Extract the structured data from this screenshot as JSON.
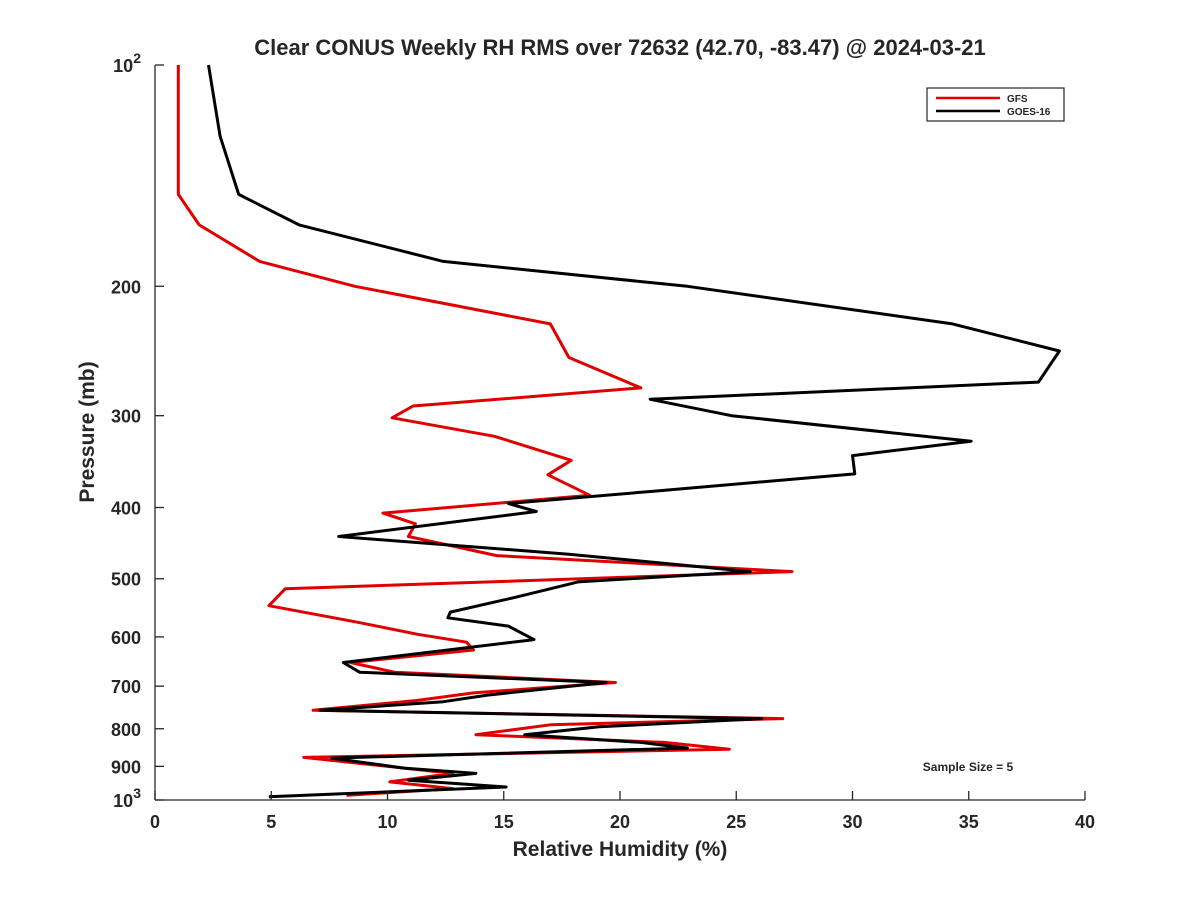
{
  "chart_data": {
    "type": "line",
    "title": "Clear CONUS Weekly RH RMS over 72632 (42.70, -83.47) @ 2024-03-21",
    "xlabel": "Relative Humidity (%)",
    "ylabel": "Pressure (mb)",
    "xlim": [
      0,
      40
    ],
    "ylim": [
      100,
      1000
    ],
    "yscale": "log",
    "y_reversed": true,
    "grid": false,
    "legend_position": "top-right",
    "x_ticks": [
      "0",
      "5",
      "10",
      "15",
      "20",
      "25",
      "30",
      "35",
      "40"
    ],
    "y_ticks": [
      {
        "value": 100,
        "base": "10",
        "exp": "2"
      },
      {
        "value": 200,
        "label": "200"
      },
      {
        "value": 300,
        "label": "300"
      },
      {
        "value": 400,
        "label": "400"
      },
      {
        "value": 500,
        "label": "500"
      },
      {
        "value": 600,
        "label": "600"
      },
      {
        "value": 700,
        "label": "700"
      },
      {
        "value": 800,
        "label": "800"
      },
      {
        "value": 900,
        "label": "900"
      },
      {
        "value": 1000,
        "base": "10",
        "exp": "3"
      }
    ],
    "annotation": "Sample Size = 5",
    "series": [
      {
        "name": "GFS",
        "color": "#e00000",
        "points": [
          [
            1.0,
            100
          ],
          [
            1.0,
            125
          ],
          [
            1.0,
            150
          ],
          [
            1.9,
            165
          ],
          [
            4.5,
            185
          ],
          [
            8.6,
            200
          ],
          [
            17.0,
            225
          ],
          [
            17.8,
            250
          ],
          [
            20.9,
            275
          ],
          [
            11.1,
            291
          ],
          [
            10.2,
            302
          ],
          [
            14.6,
            320
          ],
          [
            17.9,
            345
          ],
          [
            16.9,
            361
          ],
          [
            18.7,
            385
          ],
          [
            9.8,
            407
          ],
          [
            11.2,
            421
          ],
          [
            10.9,
            438
          ],
          [
            14.7,
            465
          ],
          [
            27.4,
            489
          ],
          [
            5.6,
            516
          ],
          [
            4.9,
            544
          ],
          [
            8.7,
            573
          ],
          [
            11.3,
            595
          ],
          [
            13.4,
            610
          ],
          [
            13.7,
            625
          ],
          [
            8.4,
            650
          ],
          [
            10.3,
            670
          ],
          [
            19.8,
            692
          ],
          [
            13.7,
            715
          ],
          [
            11.3,
            732
          ],
          [
            6.8,
            755
          ],
          [
            27.0,
            775
          ],
          [
            17.0,
            790
          ],
          [
            13.8,
            815
          ],
          [
            21.9,
            835
          ],
          [
            24.7,
            853
          ],
          [
            6.4,
            875
          ],
          [
            9.3,
            895
          ],
          [
            12.8,
            920
          ],
          [
            10.1,
            945
          ],
          [
            12.8,
            965
          ],
          [
            8.3,
            985
          ],
          [
            8.3,
            990
          ]
        ]
      },
      {
        "name": "GOES-16",
        "color": "#000000",
        "points": [
          [
            2.3,
            100
          ],
          [
            2.8,
            125
          ],
          [
            3.6,
            150
          ],
          [
            6.2,
            165
          ],
          [
            12.4,
            185
          ],
          [
            22.9,
            200
          ],
          [
            34.3,
            225
          ],
          [
            38.9,
            245
          ],
          [
            38.0,
            270
          ],
          [
            21.3,
            285
          ],
          [
            24.8,
            300
          ],
          [
            35.1,
            325
          ],
          [
            30.0,
            340
          ],
          [
            30.1,
            360
          ],
          [
            21.5,
            380
          ],
          [
            15.2,
            395
          ],
          [
            16.4,
            405
          ],
          [
            7.9,
            438
          ],
          [
            17.8,
            463
          ],
          [
            25.6,
            489
          ],
          [
            18.2,
            505
          ],
          [
            15.5,
            530
          ],
          [
            12.7,
            555
          ],
          [
            12.6,
            565
          ],
          [
            15.2,
            580
          ],
          [
            16.3,
            605
          ],
          [
            8.1,
            650
          ],
          [
            8.8,
            670
          ],
          [
            19.4,
            692
          ],
          [
            14.3,
            720
          ],
          [
            12.4,
            735
          ],
          [
            7.1,
            755
          ],
          [
            26.1,
            775
          ],
          [
            19.1,
            795
          ],
          [
            15.9,
            815
          ],
          [
            20.9,
            835
          ],
          [
            22.9,
            850
          ],
          [
            7.6,
            877
          ],
          [
            10.7,
            905
          ],
          [
            13.8,
            920
          ],
          [
            10.9,
            940
          ],
          [
            15.1,
            960
          ],
          [
            4.9,
            990
          ]
        ]
      }
    ]
  }
}
